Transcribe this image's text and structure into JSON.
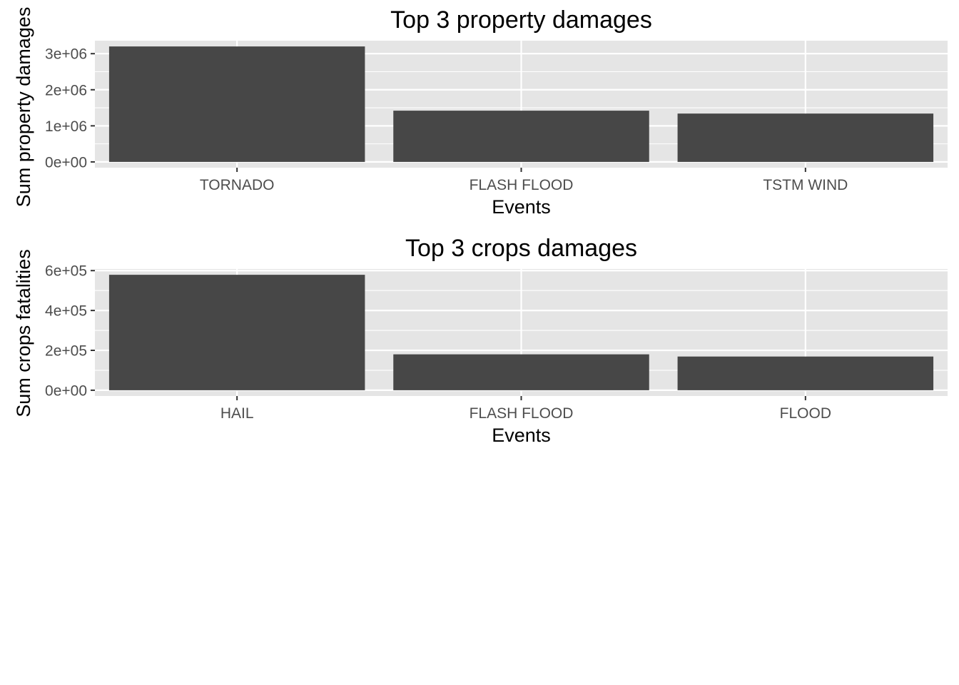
{
  "chart_data": [
    {
      "type": "bar",
      "title": "Top 3 property damages",
      "xlabel": "Events",
      "ylabel": "Sum property damages",
      "categories": [
        "TORNADO",
        "FLASH FLOOD",
        "TSTM WIND"
      ],
      "values": [
        3200000,
        1420000,
        1340000
      ],
      "ylim": [
        -160000,
        3360000
      ],
      "yticks": [
        0,
        1000000,
        2000000,
        3000000
      ],
      "ytick_labels": [
        "0e+00",
        "1e+06",
        "2e+06",
        "3e+06"
      ],
      "grid": true,
      "legend": "none"
    },
    {
      "type": "bar",
      "title": "Top 3 crops damages",
      "xlabel": "Events",
      "ylabel": "Sum crops fatalities",
      "categories": [
        "HAIL",
        "FLASH FLOOD",
        "FLOOD"
      ],
      "values": [
        579000,
        180000,
        169000
      ],
      "ylim": [
        -29000,
        608000
      ],
      "yticks": [
        0,
        200000,
        400000,
        600000
      ],
      "ytick_labels": [
        "0e+00",
        "2e+05",
        "4e+05",
        "6e+05"
      ],
      "grid": true,
      "legend": "none"
    }
  ],
  "colors": {
    "panel_background": "#e5e5e5",
    "grid_line": "#ffffff",
    "bar_fill": "#474747",
    "tick_mark": "#333333",
    "tick_text": "#4d4d4d",
    "text": "#000000"
  }
}
